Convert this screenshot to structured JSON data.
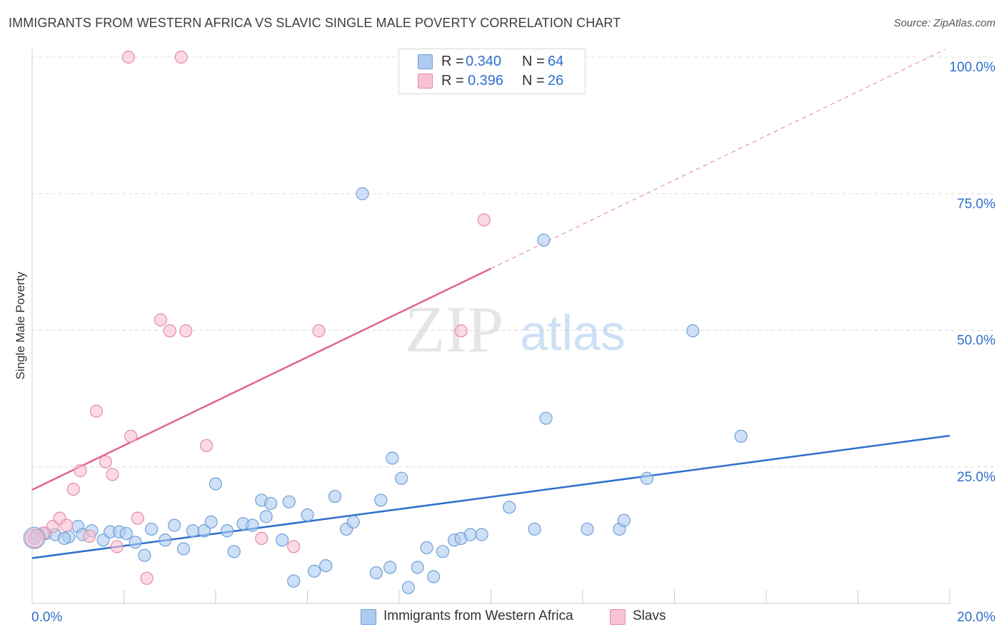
{
  "header": {
    "title": "IMMIGRANTS FROM WESTERN AFRICA VS SLAVIC SINGLE MALE POVERTY CORRELATION CHART",
    "source": "Source: ZipAtlas.com"
  },
  "watermark": {
    "zip": "ZIP",
    "atlas": "atlas"
  },
  "legend": {
    "r_label": "R =",
    "n_label": "N =",
    "series": [
      {
        "r": "0.340",
        "n": "64"
      },
      {
        "r": "0.396",
        "n": "26"
      }
    ]
  },
  "colors": {
    "blue_fill": "#aecbf0",
    "blue_stroke": "#6f9fd8",
    "blue_line": "#2e6fcc",
    "pink_fill": "#f8c2d2",
    "pink_stroke": "#e68aa7",
    "pink_line": "#e0648c",
    "grid": "#dcdcdc",
    "axis_text": "#2e6fcc"
  },
  "chart_data": {
    "type": "scatter",
    "title": "IMMIGRANTS FROM WESTERN AFRICA VS SLAVIC SINGLE MALE POVERTY CORRELATION CHART",
    "xlabel": "",
    "ylabel": "Single Male Poverty",
    "xlim": [
      0,
      20
    ],
    "ylim": [
      0,
      100
    ],
    "x_ticks": [
      "0.0%",
      "20.0%"
    ],
    "y_ticks": [
      {
        "value": 25,
        "label": "25.0%"
      },
      {
        "value": 50,
        "label": "50.0%"
      },
      {
        "value": 75,
        "label": "75.0%"
      },
      {
        "value": 100,
        "label": "100.0%"
      }
    ],
    "series": [
      {
        "name": "Immigrants from Western Africa",
        "r": 0.34,
        "n": 64,
        "trend": {
          "x": [
            0,
            20
          ],
          "y": [
            8.3,
            30.7
          ],
          "style": "solid"
        },
        "points": [
          [
            0.1,
            12.5
          ],
          [
            0.3,
            12.8
          ],
          [
            0.5,
            12.6
          ],
          [
            0.8,
            12.2
          ],
          [
            1.0,
            14.1
          ],
          [
            1.1,
            12.6
          ],
          [
            1.3,
            13.3
          ],
          [
            1.55,
            11.6
          ],
          [
            1.7,
            13.1
          ],
          [
            1.9,
            13.1
          ],
          [
            2.05,
            12.8
          ],
          [
            2.25,
            11.2
          ],
          [
            2.45,
            8.8
          ],
          [
            2.6,
            13.6
          ],
          [
            2.9,
            11.6
          ],
          [
            3.1,
            14.3
          ],
          [
            3.3,
            10.0
          ],
          [
            3.5,
            13.3
          ],
          [
            3.75,
            13.3
          ],
          [
            3.9,
            14.9
          ],
          [
            4.0,
            21.9
          ],
          [
            4.25,
            13.3
          ],
          [
            4.4,
            9.5
          ],
          [
            4.6,
            14.6
          ],
          [
            4.8,
            14.3
          ],
          [
            5.0,
            18.9
          ],
          [
            5.1,
            15.9
          ],
          [
            5.2,
            18.3
          ],
          [
            5.45,
            11.6
          ],
          [
            5.6,
            18.6
          ],
          [
            5.7,
            4.1
          ],
          [
            6.0,
            16.2
          ],
          [
            6.15,
            5.9
          ],
          [
            6.4,
            6.9
          ],
          [
            6.6,
            19.6
          ],
          [
            6.85,
            13.6
          ],
          [
            7.0,
            14.9
          ],
          [
            7.2,
            75.0
          ],
          [
            7.5,
            5.6
          ],
          [
            7.6,
            18.9
          ],
          [
            7.8,
            6.6
          ],
          [
            7.85,
            26.6
          ],
          [
            8.05,
            22.9
          ],
          [
            8.2,
            2.9
          ],
          [
            8.4,
            6.6
          ],
          [
            8.6,
            10.2
          ],
          [
            8.75,
            4.9
          ],
          [
            8.95,
            9.5
          ],
          [
            9.2,
            11.6
          ],
          [
            9.35,
            11.9
          ],
          [
            9.55,
            12.6
          ],
          [
            9.8,
            12.6
          ],
          [
            10.4,
            17.6
          ],
          [
            10.95,
            13.6
          ],
          [
            11.15,
            66.5
          ],
          [
            11.2,
            33.9
          ],
          [
            12.1,
            13.6
          ],
          [
            12.8,
            13.6
          ],
          [
            12.9,
            15.2
          ],
          [
            13.4,
            22.9
          ],
          [
            14.4,
            49.9
          ],
          [
            15.45,
            30.6
          ],
          [
            0.05,
            12.0
          ],
          [
            0.7,
            11.9
          ]
        ]
      },
      {
        "name": "Slavs",
        "r": 0.396,
        "n": 26,
        "trend": {
          "x": [
            0,
            10
          ],
          "y": [
            20.8,
            61.3
          ],
          "style": "solid",
          "extended": {
            "x": [
              10,
              19.9
            ],
            "y": [
              61.3,
              101.4
            ],
            "style": "dashed"
          }
        },
        "points": [
          [
            0.05,
            11.9
          ],
          [
            0.25,
            12.9
          ],
          [
            0.45,
            14.1
          ],
          [
            0.6,
            15.6
          ],
          [
            0.75,
            14.3
          ],
          [
            0.9,
            20.9
          ],
          [
            1.05,
            24.3
          ],
          [
            1.25,
            12.3
          ],
          [
            1.4,
            35.2
          ],
          [
            1.6,
            25.9
          ],
          [
            1.75,
            23.6
          ],
          [
            1.85,
            10.4
          ],
          [
            2.1,
            100.0
          ],
          [
            2.15,
            30.6
          ],
          [
            2.3,
            15.6
          ],
          [
            2.5,
            4.6
          ],
          [
            2.8,
            51.9
          ],
          [
            3.0,
            49.9
          ],
          [
            3.25,
            100.0
          ],
          [
            3.35,
            49.9
          ],
          [
            3.8,
            28.9
          ],
          [
            5.0,
            11.9
          ],
          [
            5.7,
            10.4
          ],
          [
            6.25,
            49.9
          ],
          [
            9.35,
            49.9
          ],
          [
            9.85,
            70.2
          ]
        ]
      }
    ]
  }
}
